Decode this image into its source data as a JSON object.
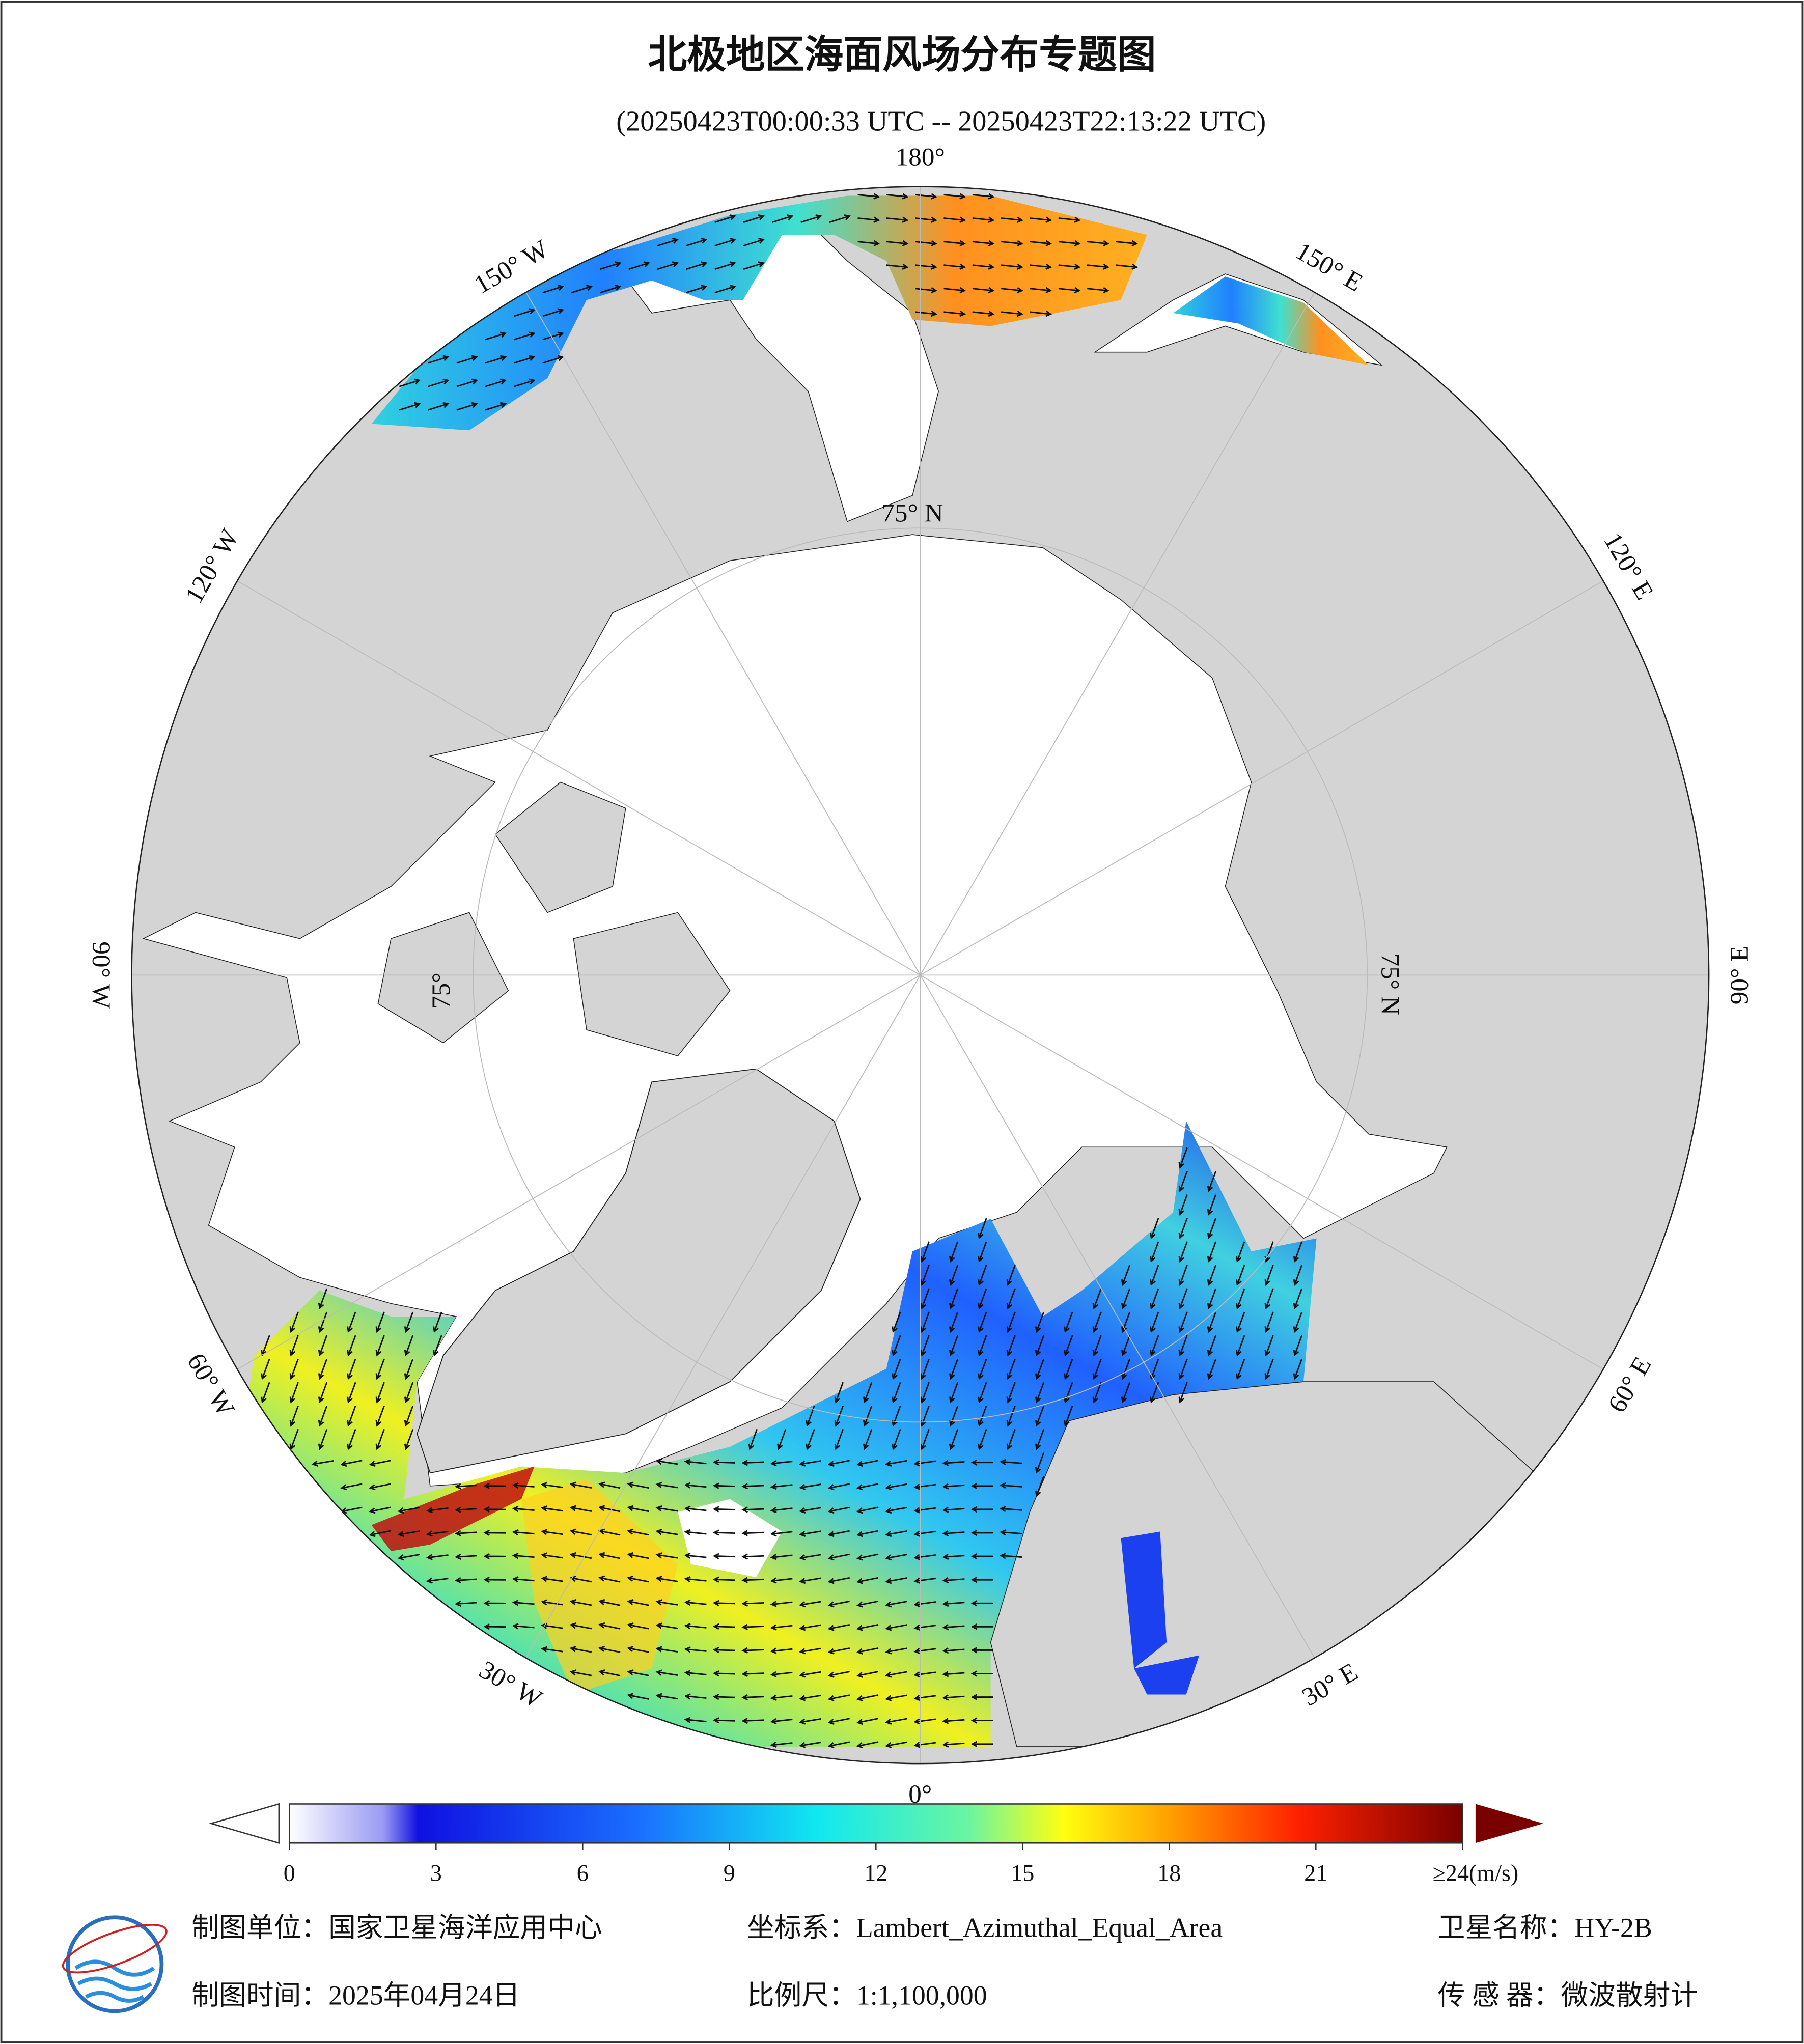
{
  "header": {
    "title": "北极地区海面风场分布专题图",
    "subtitle": "(20250423T00:00:33 UTC -- 20250423T22:13:22 UTC)"
  },
  "map": {
    "longitude_labels": [
      "180°",
      "150° E",
      "120° E",
      "90° E",
      "60° E",
      "30° E",
      "0°",
      "30° W",
      "60° W",
      "90° W",
      "120° W",
      "150° W"
    ],
    "latitude_labels": [
      "75° N",
      "75° N",
      "75°"
    ]
  },
  "colorbar": {
    "range": [
      0,
      24
    ],
    "ticks": [
      0,
      3,
      6,
      9,
      12,
      15,
      18,
      21,
      {
        "value": 24,
        "label": "≥24(m/s)"
      }
    ]
  },
  "footer": {
    "producer": "制图单位：国家卫星海洋应用中心",
    "date": "制图时间：2025年04月24日",
    "projection": "坐标系：Lambert_Azimuthal_Equal_Area",
    "scale": "比例尺：1:1,100,000",
    "satellite": "卫星名称：HY-2B",
    "sensor": "传 感 器：微波散射计"
  }
}
